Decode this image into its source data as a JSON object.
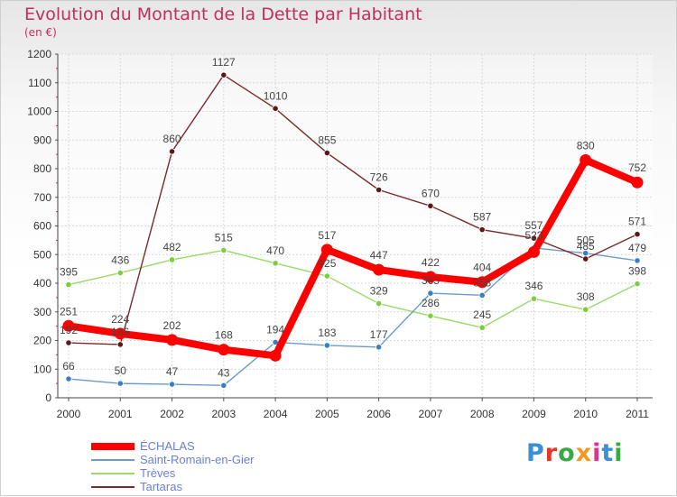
{
  "header": {
    "title": "Evolution du Montant de la Dette par Habitant",
    "unit": "(en €)"
  },
  "logo": {
    "text": "Proxiti",
    "letter_colors": [
      "#3a8fd6",
      "#e0392b",
      "#39a845",
      "#f29a1d",
      "#d9368c",
      "#3a8fd6",
      "#39a845"
    ]
  },
  "chart_data": {
    "type": "line",
    "title": "Evolution du Montant de la Dette par Habitant",
    "subtitle": "(en €)",
    "xlabel": "",
    "ylabel": "",
    "ylim": [
      0,
      1200
    ],
    "yticks": [
      0,
      100,
      200,
      300,
      400,
      500,
      600,
      700,
      800,
      900,
      1000,
      1100,
      1200
    ],
    "x": [
      "2000",
      "2001",
      "2002",
      "2003",
      "2004",
      "2005",
      "2006",
      "2007",
      "2008",
      "2009",
      "2010",
      "2011"
    ],
    "legend_position": "bottom-left",
    "series": [
      {
        "name": "ÉCHALAS",
        "color": "#ff0000",
        "values": [
          251,
          224,
          202,
          168,
          147,
          517,
          447,
          422,
          404,
          509,
          830,
          752
        ],
        "labels": [
          "251",
          "224",
          "202",
          "168",
          "",
          "517",
          "447",
          "422",
          "404",
          "",
          "830",
          "752"
        ]
      },
      {
        "name": "Saint-Romain-en-Gier",
        "color": "#6a9cc8",
        "marker": "#3a7fc0",
        "values": [
          66,
          50,
          47,
          43,
          194,
          183,
          177,
          365,
          358,
          523,
          505,
          479
        ],
        "labels": [
          "66",
          "50",
          "47",
          "43",
          "194",
          "183",
          "177",
          "365",
          "358",
          "523",
          "505",
          "479"
        ]
      },
      {
        "name": "Trèves",
        "color": "#9ad96a",
        "marker": "#7ccf3a",
        "values": [
          395,
          436,
          482,
          515,
          470,
          425,
          329,
          286,
          245,
          346,
          308,
          398
        ],
        "labels": [
          "395",
          "436",
          "482",
          "515",
          "470",
          "425",
          "329",
          "286",
          "245",
          "346",
          "308",
          "398"
        ]
      },
      {
        "name": "Tartaras",
        "color": "#7a2a2a",
        "marker": "#5a1818",
        "values": [
          192,
          186,
          860,
          1127,
          1010,
          855,
          726,
          670,
          587,
          557,
          485,
          571
        ],
        "labels": [
          "192",
          "186",
          "860",
          "1127",
          "1010",
          "855",
          "726",
          "670",
          "587",
          "557",
          "485",
          "571"
        ]
      }
    ]
  }
}
